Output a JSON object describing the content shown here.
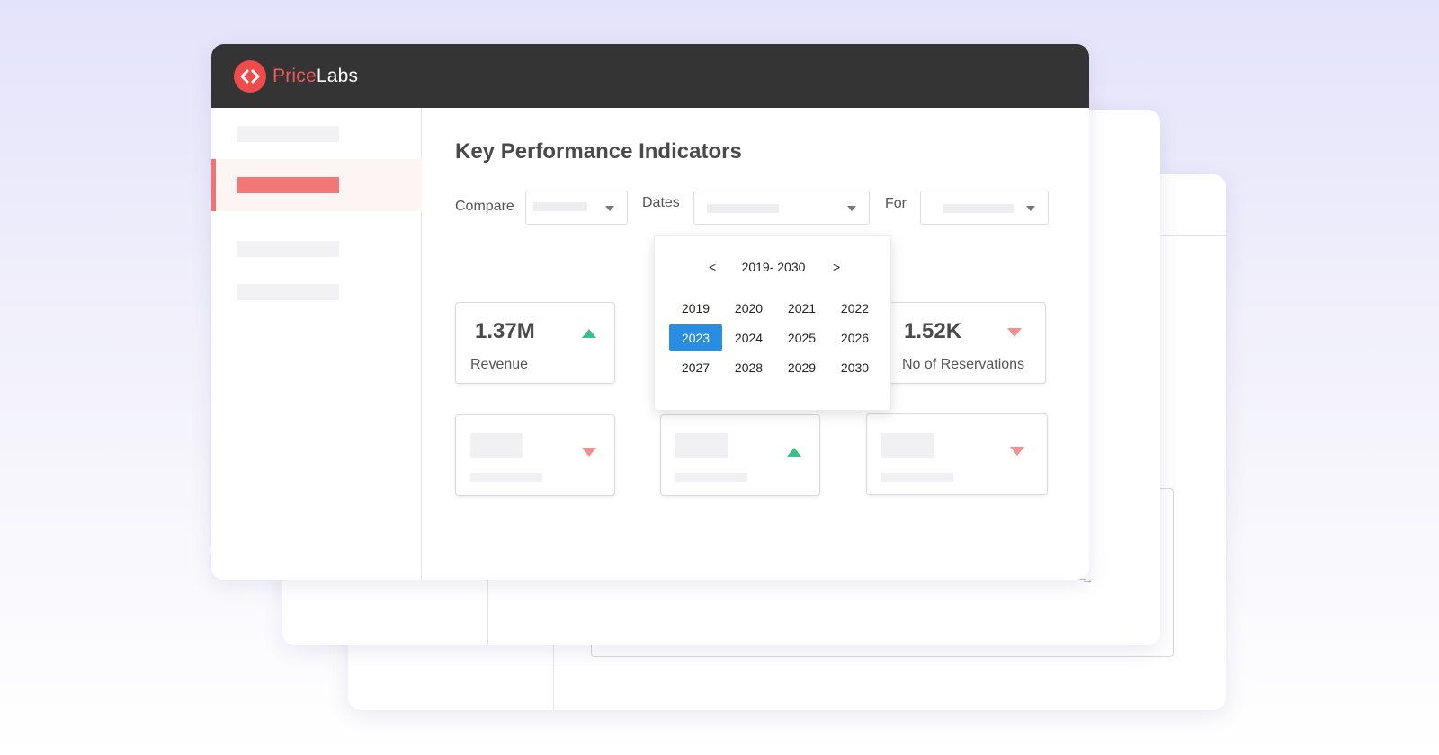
{
  "brand": {
    "name_part1": "Price",
    "name_part2": "Labs",
    "accent": "#f04b4b",
    "logo_icon": "code-brackets-icon"
  },
  "main": {
    "title": "Key Performance Indicators"
  },
  "filters": {
    "compare_label": "Compare",
    "dates_label": "Dates",
    "for_label": "For"
  },
  "year_picker": {
    "range_label": "2019- 2030",
    "prev": "<",
    "next": ">",
    "years": [
      "2019",
      "2020",
      "2021",
      "2022",
      "2023",
      "2024",
      "2025",
      "2026",
      "2027",
      "2028",
      "2029",
      "2030"
    ],
    "selected": "2023",
    "selected_color": "#2b8de1"
  },
  "kpis": [
    {
      "value": "1.37M",
      "label": "Revenue",
      "trend": "up"
    },
    {
      "value": "1.52K",
      "label": "No of Reservations",
      "trend": "down"
    }
  ],
  "colors": {
    "up": "#3dbf8a",
    "down": "#f29090",
    "topbar": "#343434"
  }
}
